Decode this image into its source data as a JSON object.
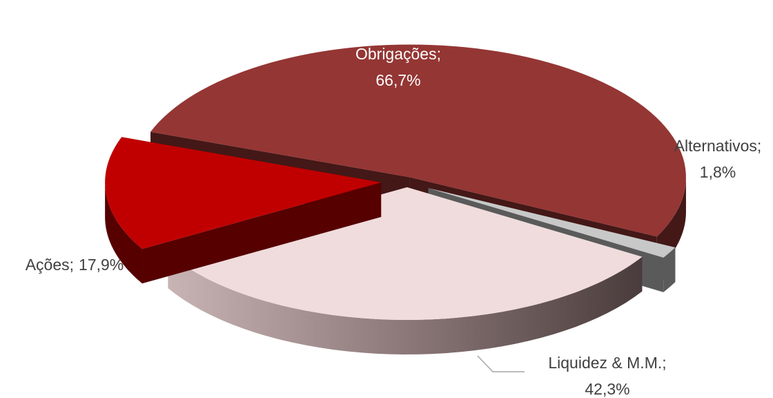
{
  "chart_data": {
    "type": "pie3d",
    "categories": [
      "Obrigações",
      "Alternativos",
      "Liquidez & M.M.",
      "Ações"
    ],
    "values": [
      66.7,
      1.8,
      42.3,
      17.9
    ],
    "value_labels": [
      "66,7%",
      "1,8%",
      "42,3%",
      "17,9%"
    ],
    "label_separator": ";",
    "colors": [
      "#943634",
      "#c8c8c8",
      "#f0dcdc",
      "#c00000"
    ]
  }
}
